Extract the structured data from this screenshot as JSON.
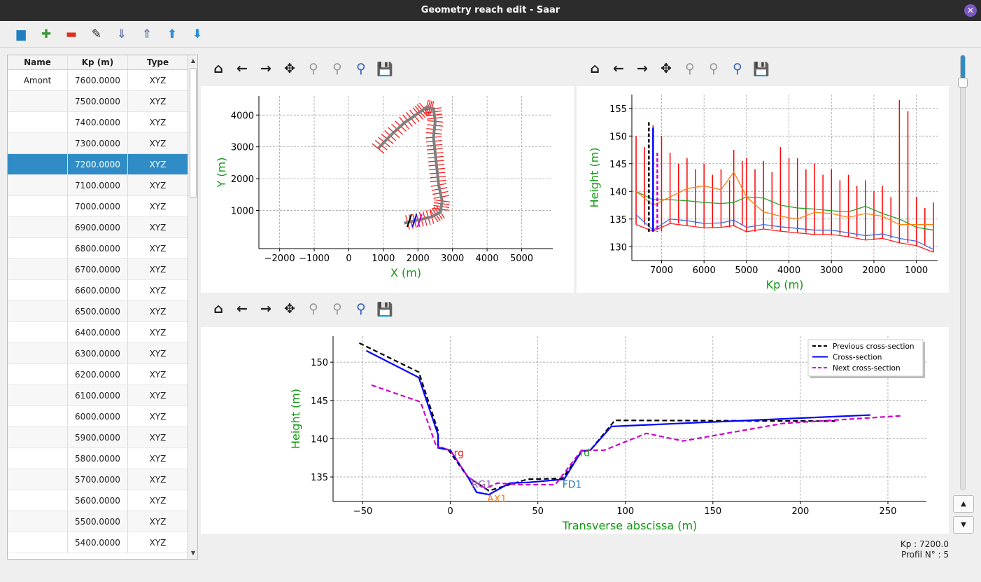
{
  "window": {
    "title": "Geometry reach edit - Saar",
    "close_icon": "close-icon"
  },
  "toolbar": {
    "items": [
      {
        "name": "open-folder",
        "glyph": "▬"
      },
      {
        "name": "add",
        "glyph": "✚"
      },
      {
        "name": "delete",
        "glyph": "▬"
      },
      {
        "name": "edit",
        "glyph": "✎"
      },
      {
        "name": "sort-ascending",
        "glyph": "⇓"
      },
      {
        "name": "sort-descending",
        "glyph": "⇑"
      },
      {
        "name": "move-up",
        "glyph": "⬆"
      },
      {
        "name": "move-down",
        "glyph": "⬇"
      }
    ]
  },
  "table": {
    "columns": [
      "Name",
      "Kp (m)",
      "Type"
    ],
    "selected_index": 4,
    "rows": [
      [
        "Amont",
        "7600.0000",
        "XYZ"
      ],
      [
        "",
        "7500.0000",
        "XYZ"
      ],
      [
        "",
        "7400.0000",
        "XYZ"
      ],
      [
        "",
        "7300.0000",
        "XYZ"
      ],
      [
        "",
        "7200.0000",
        "XYZ"
      ],
      [
        "",
        "7100.0000",
        "XYZ"
      ],
      [
        "",
        "7000.0000",
        "XYZ"
      ],
      [
        "",
        "6900.0000",
        "XYZ"
      ],
      [
        "",
        "6800.0000",
        "XYZ"
      ],
      [
        "",
        "6700.0000",
        "XYZ"
      ],
      [
        "",
        "6600.0000",
        "XYZ"
      ],
      [
        "",
        "6500.0000",
        "XYZ"
      ],
      [
        "",
        "6400.0000",
        "XYZ"
      ],
      [
        "",
        "6300.0000",
        "XYZ"
      ],
      [
        "",
        "6200.0000",
        "XYZ"
      ],
      [
        "",
        "6100.0000",
        "XYZ"
      ],
      [
        "",
        "6000.0000",
        "XYZ"
      ],
      [
        "",
        "5900.0000",
        "XYZ"
      ],
      [
        "",
        "5800.0000",
        "XYZ"
      ],
      [
        "",
        "5700.0000",
        "XYZ"
      ],
      [
        "",
        "5600.0000",
        "XYZ"
      ],
      [
        "",
        "5500.0000",
        "XYZ"
      ],
      [
        "",
        "5400.0000",
        "XYZ"
      ]
    ]
  },
  "plot_toolbar": [
    {
      "name": "home",
      "glyph": "⌂"
    },
    {
      "name": "back",
      "glyph": "←"
    },
    {
      "name": "forward",
      "glyph": "→"
    },
    {
      "name": "pan",
      "glyph": "✥"
    },
    {
      "name": "zoom",
      "glyph": "⚲"
    },
    {
      "name": "zoom-1",
      "glyph": "⚲"
    },
    {
      "name": "zoom-fit",
      "glyph": "⚲"
    },
    {
      "name": "save",
      "glyph": "💾"
    }
  ],
  "status": {
    "kp": "Kp : 7200.0",
    "profile": "Profil N° : 5"
  },
  "chart_data": [
    {
      "type": "line",
      "id": "planform",
      "xlabel": "X (m)",
      "ylabel": "Y (m)",
      "xlim": [
        -2600,
        5900
      ],
      "ylim": [
        -200,
        4600
      ],
      "grid": true,
      "xticks": [
        -2000,
        -1000,
        0,
        1000,
        2000,
        3000,
        4000,
        5000
      ],
      "yticks": [
        1000,
        2000,
        3000,
        4000
      ],
      "series": [
        {
          "color": "#808080",
          "values": [
            [
              850,
              2950
            ],
            [
              1200,
              3350
            ],
            [
              1600,
              3750
            ],
            [
              2000,
              4050
            ],
            [
              2250,
              4250
            ],
            [
              2450,
              4200
            ],
            [
              2500,
              3800
            ],
            [
              2450,
              3300
            ],
            [
              2500,
              2800
            ],
            [
              2550,
              2300
            ],
            [
              2600,
              1800
            ],
            [
              2700,
              1300
            ],
            [
              2650,
              950
            ],
            [
              2400,
              800
            ],
            [
              2000,
              700
            ],
            [
              1600,
              600
            ]
          ]
        }
      ]
    },
    {
      "type": "line",
      "id": "longitudinal",
      "xlabel": "Kp (m)",
      "ylabel": "Height (m)",
      "xlim": [
        7700,
        500
      ],
      "ylim": [
        127.5,
        157.5
      ],
      "grid": true,
      "x_reversed": true,
      "xticks": [
        7000,
        6000,
        5000,
        4000,
        3000,
        2000,
        1000
      ],
      "yticks": [
        130,
        135,
        140,
        145,
        150,
        155
      ],
      "kp": [
        7600,
        7200,
        6800,
        6400,
        6000,
        5600,
        5300,
        5000,
        4600,
        4200,
        3800,
        3400,
        3000,
        2600,
        2200,
        1800,
        1400,
        1000,
        600
      ],
      "series": [
        {
          "color": "#2ca02c",
          "values": [
            140,
            138.5,
            138.5,
            138.3,
            138,
            137.8,
            138,
            139,
            138.8,
            137.5,
            137,
            136.8,
            136.5,
            136.3,
            137.3,
            136,
            135,
            133.5,
            133
          ]
        },
        {
          "color": "#ff7f0e",
          "values": [
            140,
            137.5,
            139,
            140.5,
            141,
            140.3,
            143.5,
            139,
            136.3,
            135.5,
            135,
            136.2,
            136,
            135.3,
            136,
            135.5,
            134,
            134,
            134
          ]
        },
        {
          "color": "#4169e1",
          "values": [
            135.8,
            133,
            135,
            134.7,
            134.2,
            134.3,
            134.8,
            133.5,
            134,
            133.6,
            133.3,
            133,
            133,
            132.5,
            132,
            132.3,
            131.5,
            131,
            129.5
          ]
        },
        {
          "color": "#ff2020",
          "values": [
            134,
            132.8,
            134.2,
            133.8,
            133.4,
            133.5,
            133.8,
            132.7,
            133.2,
            132.8,
            132.5,
            132.2,
            132.2,
            131.8,
            131.2,
            131.5,
            130.7,
            130.2,
            129
          ]
        }
      ],
      "profile_max": [
        150,
        152,
        147,
        146,
        145,
        144,
        147.5,
        146,
        145.5,
        148,
        146,
        145,
        144,
        143,
        142,
        141,
        156.5,
        139,
        138
      ],
      "markers": [
        {
          "kp": 7300,
          "color": "#000000",
          "top": 152.5,
          "style": "dashed"
        },
        {
          "kp": 7200,
          "color": "#0000ff",
          "top": 151.5,
          "style": "solid"
        },
        {
          "kp": 7100,
          "color": "#cc00cc",
          "top": 147,
          "style": "dashed"
        }
      ]
    },
    {
      "type": "line",
      "id": "cross-section",
      "xlabel": "Transverse abscissa (m)",
      "ylabel": "Height (m)",
      "xlim": [
        -67,
        272
      ],
      "ylim": [
        131.8,
        153.4
      ],
      "grid": true,
      "legend": "top-right",
      "xticks": [
        -50,
        0,
        50,
        100,
        150,
        200,
        250
      ],
      "yticks": [
        135,
        140,
        145,
        150
      ],
      "series": [
        {
          "name": "Previous cross-section",
          "color": "#000000",
          "style": "dashed",
          "values": [
            [
              -52,
              152.5
            ],
            [
              -18,
              148.7
            ],
            [
              -7,
              141
            ],
            [
              -7,
              139
            ],
            [
              -1,
              138.5
            ],
            [
              10,
              135
            ],
            [
              22,
              133.2
            ],
            [
              44,
              134.7
            ],
            [
              64,
              134.8
            ],
            [
              75,
              138.3
            ],
            [
              80,
              138.5
            ],
            [
              94,
              142.4
            ],
            [
              220,
              142.3
            ]
          ]
        },
        {
          "name": "Cross-section",
          "color": "#0000ff",
          "style": "solid",
          "values": [
            [
              -48,
              151.5
            ],
            [
              -18,
              148
            ],
            [
              -7,
              140.5
            ],
            [
              -7,
              138.8
            ],
            [
              0,
              138.5
            ],
            [
              10,
              135
            ],
            [
              15,
              133
            ],
            [
              22,
              132.7
            ],
            [
              34,
              134.2
            ],
            [
              45,
              134.3
            ],
            [
              65,
              134.7
            ],
            [
              75,
              138.4
            ],
            [
              80,
              138.5
            ],
            [
              92,
              141.6
            ],
            [
              240,
              143.1
            ]
          ]
        },
        {
          "name": "Next cross-section",
          "color": "#cc00cc",
          "style": "dashed",
          "values": [
            [
              -45,
              147
            ],
            [
              -17,
              144.8
            ],
            [
              -8,
              139
            ],
            [
              0,
              138.5
            ],
            [
              10,
              135
            ],
            [
              20,
              133.5
            ],
            [
              27,
              134.2
            ],
            [
              40,
              134
            ],
            [
              60,
              134
            ],
            [
              75,
              138.5
            ],
            [
              88,
              138.5
            ],
            [
              112,
              140.7
            ],
            [
              133,
              139.7
            ],
            [
              190,
              142
            ],
            [
              258,
              143
            ]
          ]
        }
      ],
      "annotations": [
        {
          "text": "rg",
          "x": 2,
          "y": 137.7,
          "color": "#e03030"
        },
        {
          "text": "RG1",
          "x": 12,
          "y": 133.6,
          "color": "#9467bd"
        },
        {
          "text": "AX1",
          "x": 21,
          "y": 131.7,
          "color": "#ff7f0e"
        },
        {
          "text": "FD1",
          "x": 64,
          "y": 133.6,
          "color": "#1f77b4"
        },
        {
          "text": "rd",
          "x": 74,
          "y": 137.7,
          "color": "#2ca02c"
        }
      ]
    }
  ]
}
